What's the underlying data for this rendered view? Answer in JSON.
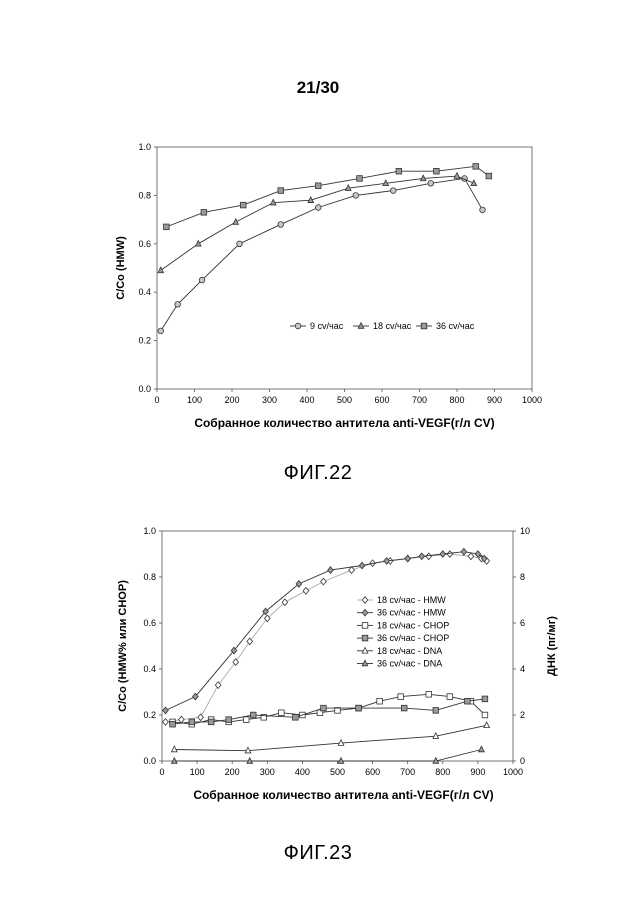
{
  "page": {
    "number": "21/30"
  },
  "figures": [
    {
      "caption": "ФИГ.22"
    },
    {
      "caption": "ФИГ.23"
    }
  ],
  "chart_data": [
    {
      "type": "line",
      "xlabel": "Собранное количество антитела anti-VEGF(г/л CV)",
      "ylabel": "C/Co (HMW)",
      "xlim": [
        0,
        1000
      ],
      "ylim": [
        0,
        1.0
      ],
      "xticks": [
        "0",
        "100",
        "200",
        "300",
        "400",
        "500",
        "600",
        "700",
        "800",
        "900",
        "1000"
      ],
      "yticks": [
        "0.0",
        "0.2",
        "0.4",
        "0.6",
        "0.8",
        "1.0"
      ],
      "legend_position": "center-right",
      "grid": false,
      "series": [
        {
          "name": "9 cv/час",
          "marker": "circle",
          "x": [
            10,
            55,
            120,
            220,
            330,
            430,
            530,
            630,
            730,
            820,
            868
          ],
          "y": [
            0.24,
            0.35,
            0.45,
            0.6,
            0.68,
            0.75,
            0.8,
            0.82,
            0.85,
            0.87,
            0.74
          ]
        },
        {
          "name": "18 cv/час",
          "marker": "triangle",
          "x": [
            10,
            110,
            210,
            310,
            410,
            510,
            610,
            710,
            800,
            845
          ],
          "y": [
            0.49,
            0.6,
            0.69,
            0.77,
            0.78,
            0.83,
            0.85,
            0.87,
            0.88,
            0.85
          ]
        },
        {
          "name": "36 cv/час",
          "marker": "square",
          "x": [
            25,
            125,
            230,
            330,
            430,
            540,
            645,
            745,
            850,
            885
          ],
          "y": [
            0.67,
            0.73,
            0.76,
            0.82,
            0.84,
            0.87,
            0.9,
            0.9,
            0.92,
            0.88
          ]
        }
      ]
    },
    {
      "type": "line",
      "xlabel": "Собранное количество антитела anti-VEGF(г/л CV)",
      "ylabel": "C/Co (HMW% или CHOP)",
      "y2label": "ДНК (пг/мг)",
      "xlim": [
        0,
        1000
      ],
      "ylim": [
        0,
        1.0
      ],
      "y2lim": [
        0,
        10
      ],
      "xticks": [
        "0",
        "100",
        "200",
        "300",
        "400",
        "500",
        "600",
        "700",
        "800",
        "900",
        "1000"
      ],
      "yticks": [
        "0.0",
        "0.2",
        "0.4",
        "0.6",
        "0.8",
        "1.0"
      ],
      "y2ticks": [
        "0",
        "2",
        "4",
        "6",
        "8",
        "10"
      ],
      "legend_position": "center-right",
      "grid": false,
      "series": [
        {
          "name": "18 cv/час - HMW",
          "marker": "diamond-open",
          "line": "light",
          "x": [
            10,
            55,
            110,
            160,
            210,
            250,
            300,
            350,
            410,
            460,
            540,
            600,
            650,
            700,
            760,
            820,
            880,
            910,
            925
          ],
          "y": [
            0.17,
            0.18,
            0.19,
            0.33,
            0.43,
            0.52,
            0.62,
            0.69,
            0.74,
            0.78,
            0.83,
            0.86,
            0.87,
            0.88,
            0.89,
            0.9,
            0.89,
            0.88,
            0.87
          ]
        },
        {
          "name": "36 cv/час - HMW",
          "marker": "diamond",
          "line": "dark",
          "x": [
            10,
            95,
            205,
            295,
            390,
            480,
            570,
            640,
            700,
            740,
            800,
            860,
            900,
            918
          ],
          "y": [
            0.22,
            0.28,
            0.48,
            0.65,
            0.77,
            0.83,
            0.85,
            0.87,
            0.88,
            0.89,
            0.9,
            0.91,
            0.9,
            0.88
          ]
        },
        {
          "name": "18 cv/час - CHOP",
          "marker": "square-open",
          "line": "dark",
          "x": [
            30,
            85,
            140,
            190,
            240,
            290,
            340,
            400,
            450,
            500,
            560,
            620,
            680,
            760,
            820,
            880,
            920
          ],
          "y": [
            0.17,
            0.16,
            0.18,
            0.17,
            0.18,
            0.19,
            0.21,
            0.2,
            0.21,
            0.22,
            0.23,
            0.26,
            0.28,
            0.29,
            0.28,
            0.26,
            0.2
          ]
        },
        {
          "name": "36 cv/час - CHOP",
          "marker": "square",
          "line": "dark",
          "x": [
            30,
            85,
            140,
            190,
            260,
            380,
            460,
            560,
            690,
            780,
            870,
            920
          ],
          "y": [
            0.16,
            0.17,
            0.17,
            0.18,
            0.2,
            0.19,
            0.23,
            0.23,
            0.23,
            0.22,
            0.26,
            0.27
          ]
        },
        {
          "name": "18 cv/час - DNA",
          "marker": "triangle-open",
          "line": "dark",
          "axis": "right",
          "x": [
            35,
            245,
            510,
            780,
            925
          ],
          "y": [
            0.5,
            0.45,
            0.78,
            1.08,
            1.55
          ]
        },
        {
          "name": "36 cv/час - DNA",
          "marker": "triangle",
          "line": "dark",
          "axis": "right",
          "x": [
            35,
            250,
            510,
            780,
            910
          ],
          "y": [
            0.0,
            0.0,
            0.0,
            0.0,
            0.5
          ]
        }
      ]
    }
  ]
}
